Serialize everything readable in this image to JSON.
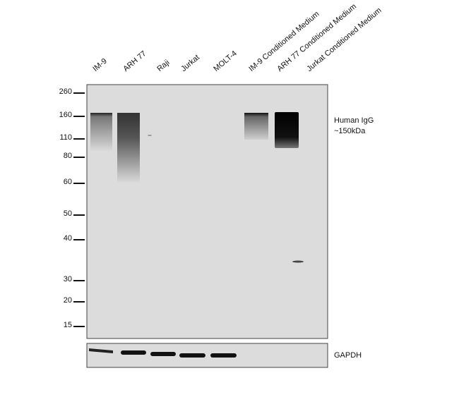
{
  "lanes": [
    "IM-9",
    "ARH 77",
    "Raji",
    "Jurkat",
    "MOLT-4",
    "IM-9 Conditioned Medium",
    "ARH 77 Conditioned Medium",
    "Jurkat Conditioned Medium"
  ],
  "markers_kda": [
    "260",
    "160",
    "110",
    "80",
    "60",
    "50",
    "40",
    "30",
    "20",
    "15"
  ],
  "target_label": "Human IgG",
  "target_size": "~150kDa",
  "loading_control": "GAPDH",
  "colors": {
    "membrane": "#dcdcdc",
    "band": "#111111"
  }
}
